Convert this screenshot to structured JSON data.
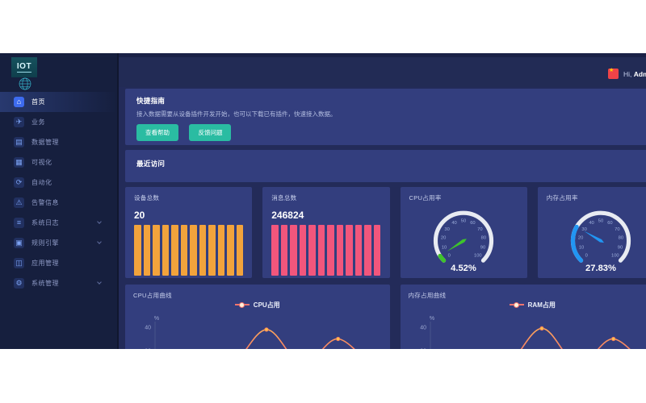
{
  "topbar": {
    "greeting_prefix": "Hi,",
    "username": "Admin"
  },
  "logo": {
    "text": "IOT"
  },
  "sidebar": {
    "items": [
      {
        "key": "home",
        "label": "首页",
        "icon": "home-icon",
        "glyph": "⌂",
        "active": true
      },
      {
        "key": "business",
        "label": "业务",
        "icon": "paper-plane-icon",
        "glyph": "✈"
      },
      {
        "key": "data-management",
        "label": "数据管理",
        "icon": "database-icon",
        "glyph": "▤"
      },
      {
        "key": "visualization",
        "label": "可视化",
        "icon": "monitor-icon",
        "glyph": "▦"
      },
      {
        "key": "automation",
        "label": "自动化",
        "icon": "automation-icon",
        "glyph": "⟳"
      },
      {
        "key": "alarm-info",
        "label": "告警信息",
        "icon": "warning-triangle-icon",
        "glyph": "⚠"
      },
      {
        "key": "system-log",
        "label": "系统日志",
        "icon": "log-file-icon",
        "glyph": "≡",
        "expandable": true
      },
      {
        "key": "rule-engine",
        "label": "规则引擎",
        "icon": "rule-box-icon",
        "glyph": "▣",
        "expandable": true
      },
      {
        "key": "app-management",
        "label": "应用管理",
        "icon": "app-basket-icon",
        "glyph": "◫"
      },
      {
        "key": "system-management",
        "label": "系统管理",
        "icon": "gear-icon",
        "glyph": "⚙",
        "expandable": true
      }
    ]
  },
  "quick_guide": {
    "title": "快捷指南",
    "description": "接入数据需要从设备插件开发开始，也可以下载已有插件，快速接入数据。",
    "help_button": "查看帮助",
    "feedback_button": "反馈问题",
    "button_color": "#2ABCA2"
  },
  "recent": {
    "title": "最近访问"
  },
  "chart_data": [
    {
      "type": "bar",
      "title": "设备总数",
      "value_label": "20",
      "values": [
        1,
        1,
        1,
        1,
        1,
        1,
        1,
        1,
        1,
        1,
        1,
        1
      ],
      "color": "#F2A33C"
    },
    {
      "type": "bar",
      "title": "消息总数",
      "value_label": "246824",
      "values": [
        1,
        1,
        1,
        1,
        1,
        1,
        1,
        1,
        1,
        1,
        1,
        1
      ],
      "color": "#F2567C"
    },
    {
      "type": "gauge",
      "title": "CPU占用率",
      "value": 4.52,
      "value_label": "4.52%",
      "min": 0,
      "max": 100,
      "tick_interval": 10,
      "color": "#3EC32B",
      "track_color": "#E8EBF2"
    },
    {
      "type": "gauge",
      "title": "内存占用率",
      "value": 27.83,
      "value_label": "27.83%",
      "min": 0,
      "max": 100,
      "tick_interval": 10,
      "color": "#2196F3",
      "track_color": "#E8EBF2"
    },
    {
      "type": "line",
      "title": "CPU占用曲线",
      "legend": "CPU占用",
      "ylabel": "%",
      "yticks": [
        20,
        40
      ],
      "ylim": [
        0,
        40
      ],
      "values": [
        3,
        4,
        6,
        38,
        8,
        30,
        3
      ],
      "line_color_top": "#FFA75A",
      "line_color_bottom": "#EC5A6E"
    },
    {
      "type": "line",
      "title": "内存占用曲线",
      "legend": "RAM占用",
      "ylabel": "%",
      "yticks": [
        20,
        40
      ],
      "ylim": [
        0,
        40
      ],
      "values": [
        3,
        4,
        6,
        39,
        8,
        30,
        3
      ],
      "line_color_top": "#FFA75A",
      "line_color_bottom": "#EC5A6E"
    }
  ],
  "colors": {
    "card_bg": "#333E7E",
    "content_bg": "#232B59",
    "sidebar_bg": "#161F3E",
    "topbar_bg": "#222B55",
    "active_item_accent": "#3D6BEF"
  }
}
